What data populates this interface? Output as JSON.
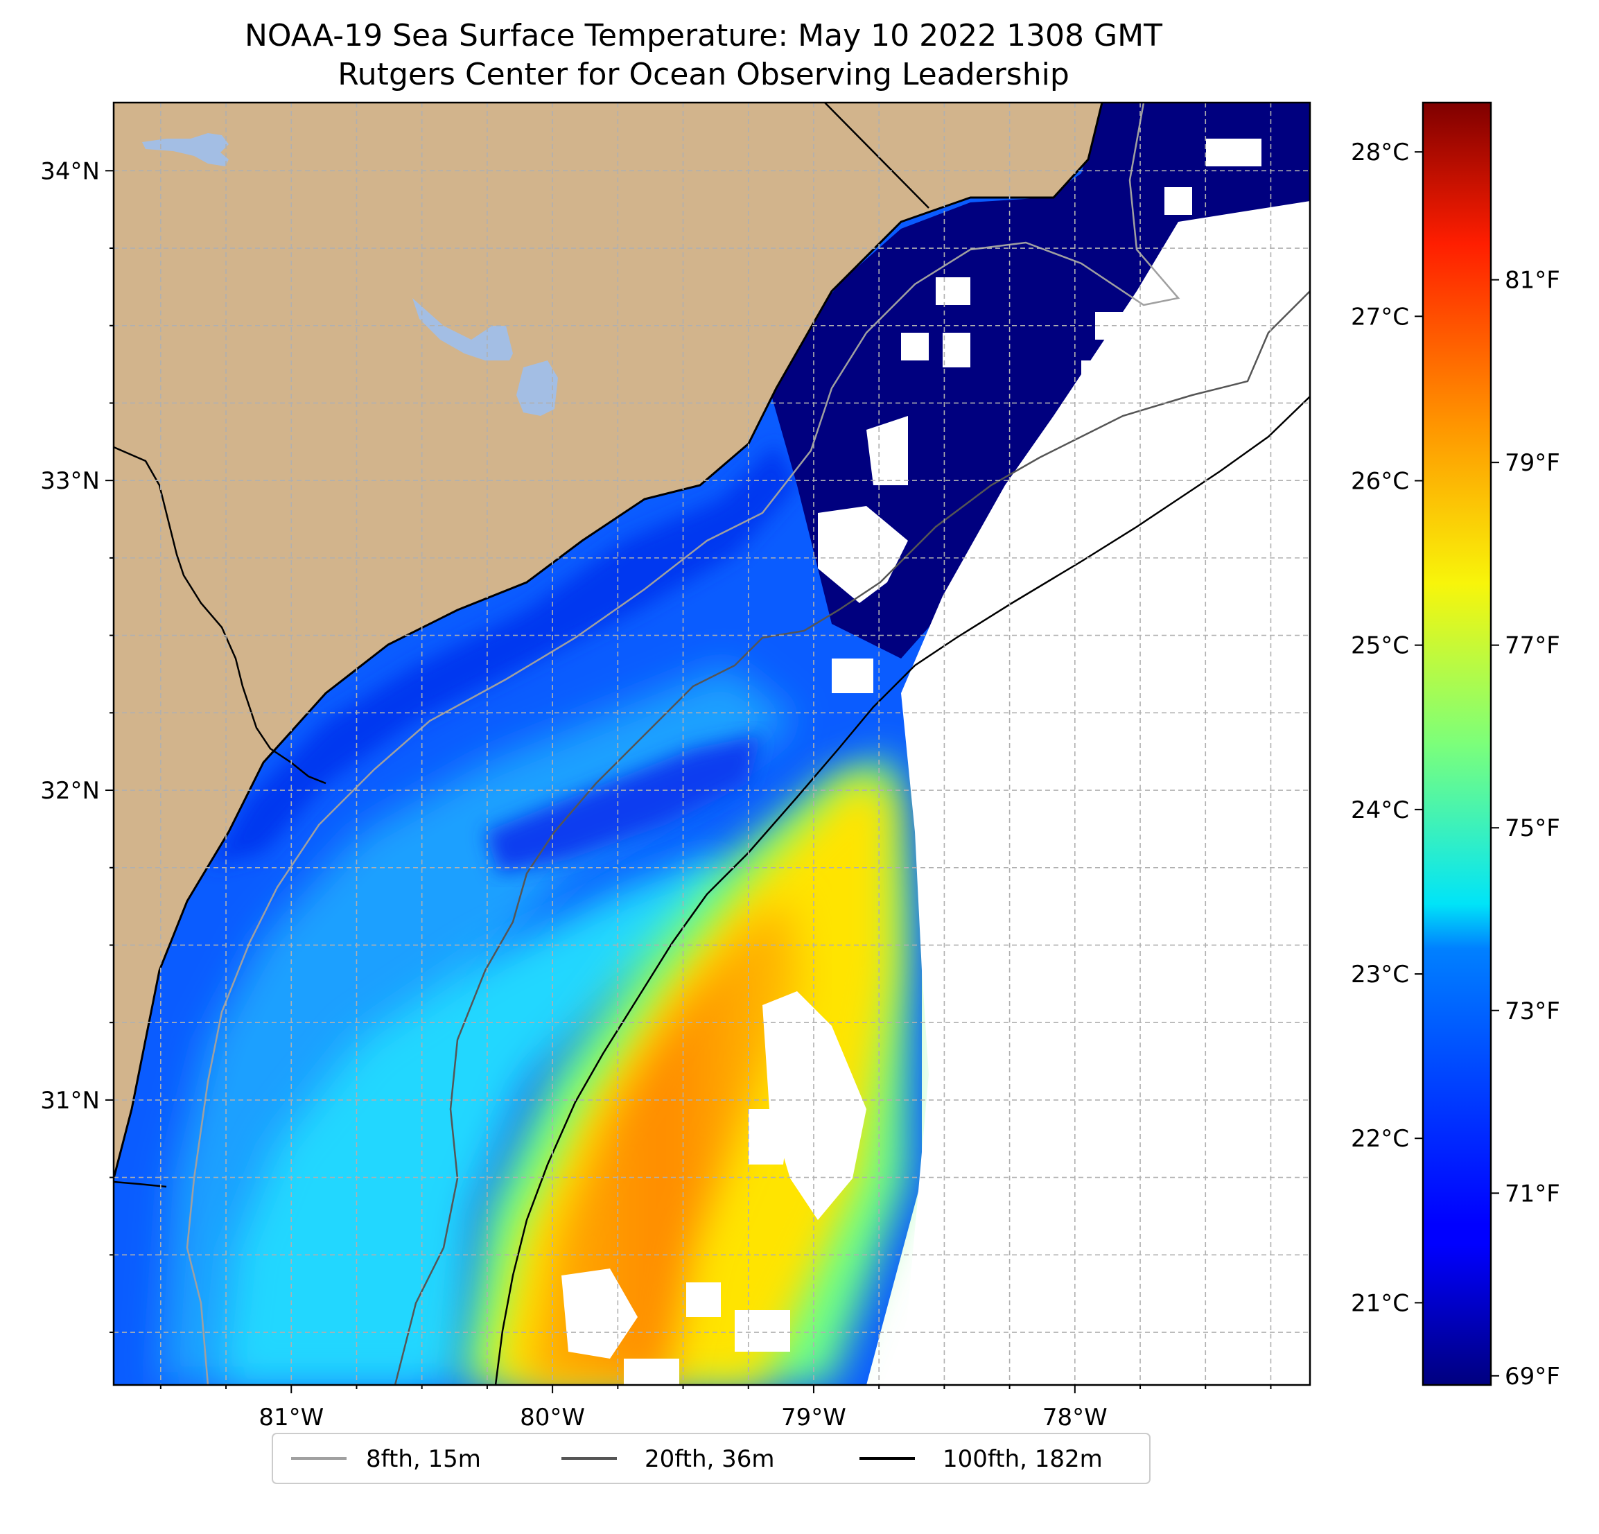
{
  "title": {
    "line1": "NOAA-19 Sea Surface Temperature: May 10 2022 1308 GMT",
    "line2": "Rutgers Center for Ocean Observing Leadership"
  },
  "map": {
    "lon_range": [
      -81.68,
      -77.1
    ],
    "lat_range": [
      30.08,
      34.22
    ],
    "lat_ticks": [
      {
        "value": 34,
        "label": "34°N"
      },
      {
        "value": 33,
        "label": "33°N"
      },
      {
        "value": 32,
        "label": "32°N"
      },
      {
        "value": 31,
        "label": "31°N"
      }
    ],
    "lon_ticks": [
      {
        "value": -81,
        "label": "81°W"
      },
      {
        "value": -80,
        "label": "80°W"
      },
      {
        "value": -79,
        "label": "79°W"
      },
      {
        "value": -78,
        "label": "78°W"
      }
    ],
    "gridlines": true,
    "colors": {
      "land": "#d2b48c",
      "lake": "#a3bee4",
      "no_data": "#ffffff",
      "grid": "#b0b0b0"
    }
  },
  "colorbar": {
    "colormap": "jet",
    "range_celsius": [
      20.5,
      28.3
    ],
    "celsius_ticks": [
      "28°C",
      "27°C",
      "26°C",
      "25°C",
      "24°C",
      "23°C",
      "22°C",
      "21°C"
    ],
    "celsius_values": [
      28,
      27,
      26,
      25,
      24,
      23,
      22,
      21
    ],
    "fahrenheit_ticks": [
      "81°F",
      "79°F",
      "77°F",
      "75°F",
      "73°F",
      "71°F",
      "69°F"
    ],
    "fahrenheit_values": [
      81,
      79,
      77,
      75,
      73,
      71,
      69
    ]
  },
  "legend": {
    "placement": "bottom-center",
    "entries": [
      {
        "label": "8fth, 15m",
        "color": "#a0a0a0"
      },
      {
        "label": "20fth, 36m",
        "color": "#555555"
      },
      {
        "label": "100fth, 182m",
        "color": "#000000"
      }
    ]
  }
}
